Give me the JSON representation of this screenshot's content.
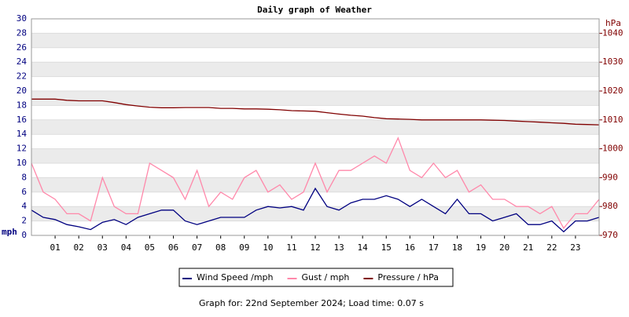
{
  "chart_data": {
    "type": "line",
    "title": "Daily graph of Weather",
    "y_label": "mph",
    "y2_label": "hPa",
    "caption": "Graph for: 22nd September 2024; Load time: 0.07 s",
    "grid": true,
    "xlim": [
      0,
      24
    ],
    "xticks": [
      {
        "value": 1,
        "label": "01"
      },
      {
        "value": 2,
        "label": "02"
      },
      {
        "value": 3,
        "label": "03"
      },
      {
        "value": 4,
        "label": "04"
      },
      {
        "value": 5,
        "label": "05"
      },
      {
        "value": 6,
        "label": "06"
      },
      {
        "value": 7,
        "label": "07"
      },
      {
        "value": 8,
        "label": "08"
      },
      {
        "value": 9,
        "label": "09"
      },
      {
        "value": 10,
        "label": "10"
      },
      {
        "value": 11,
        "label": "11"
      },
      {
        "value": 12,
        "label": "12"
      },
      {
        "value": 13,
        "label": "13"
      },
      {
        "value": 14,
        "label": "14"
      },
      {
        "value": 15,
        "label": "15"
      },
      {
        "value": 16,
        "label": "16"
      },
      {
        "value": 17,
        "label": "17"
      },
      {
        "value": 18,
        "label": "18"
      },
      {
        "value": 19,
        "label": "19"
      },
      {
        "value": 20,
        "label": "20"
      },
      {
        "value": 21,
        "label": "21"
      },
      {
        "value": 22,
        "label": "22"
      },
      {
        "value": 23,
        "label": "23"
      }
    ],
    "ylim": [
      0,
      30
    ],
    "yticks": [
      0,
      2,
      4,
      6,
      8,
      10,
      12,
      14,
      16,
      18,
      20,
      22,
      24,
      26,
      28,
      30
    ],
    "y2lim": [
      970,
      1045
    ],
    "y2ticks": [
      970,
      980,
      990,
      1000,
      1010,
      1020,
      1030,
      1040
    ],
    "x": [
      0,
      0.5,
      1,
      1.5,
      2,
      2.5,
      3,
      3.5,
      4,
      4.5,
      5,
      5.5,
      6,
      6.5,
      7,
      7.5,
      8,
      8.5,
      9,
      9.5,
      10,
      10.5,
      11,
      11.5,
      12,
      12.5,
      13,
      13.5,
      14,
      14.5,
      15,
      15.5,
      16,
      16.5,
      17,
      17.5,
      18,
      18.5,
      19,
      19.5,
      20,
      20.5,
      21,
      21.5,
      22,
      22.5,
      23,
      23.5,
      24
    ],
    "series": [
      {
        "name": "Gust / mph",
        "color": "#ff88aa",
        "values": [
          10,
          6,
          5,
          3,
          3,
          2,
          8,
          4,
          3,
          3,
          10,
          9,
          8,
          5,
          9,
          4,
          6,
          5,
          8,
          9,
          6,
          7,
          5,
          6,
          10,
          6,
          9,
          9,
          10,
          11,
          10,
          13.5,
          9,
          8,
          10,
          8,
          9,
          6,
          7,
          5,
          5,
          4,
          4,
          3,
          4,
          1,
          3,
          3,
          5
        ]
      },
      {
        "name": "Wind Speed /mph",
        "color": "#000080",
        "values": [
          3.5,
          2.5,
          2.2,
          1.5,
          1.2,
          0.8,
          1.8,
          2.2,
          1.5,
          2.5,
          3,
          3.5,
          3.5,
          2,
          1.5,
          2,
          2.5,
          2.5,
          2.5,
          3.5,
          4,
          3.8,
          4,
          3.5,
          6.5,
          4,
          3.5,
          4.5,
          5,
          5,
          5.5,
          5,
          4,
          5,
          4,
          3,
          5,
          3,
          3,
          2,
          2.5,
          3,
          1.5,
          1.5,
          2,
          0.5,
          2,
          2,
          2.5
        ]
      },
      {
        "name": "Pressure / hPa",
        "color": "#800000",
        "axis": "y2",
        "values": [
          1017.2,
          1017.2,
          1017.2,
          1016.8,
          1016.6,
          1016.6,
          1016.6,
          1016,
          1015.3,
          1014.8,
          1014.4,
          1014.2,
          1014.2,
          1014.3,
          1014.3,
          1014.3,
          1014,
          1014,
          1013.8,
          1013.8,
          1013.7,
          1013.5,
          1013.2,
          1013.1,
          1013,
          1012.5,
          1012,
          1011.6,
          1011.3,
          1010.8,
          1010.4,
          1010.3,
          1010.2,
          1010,
          1010,
          1010,
          1010,
          1010,
          1010,
          1009.9,
          1009.8,
          1009.6,
          1009.4,
          1009.2,
          1009,
          1008.8,
          1008.5,
          1008.4,
          1008.3
        ]
      }
    ],
    "legend_order": [
      1,
      0,
      2
    ]
  }
}
